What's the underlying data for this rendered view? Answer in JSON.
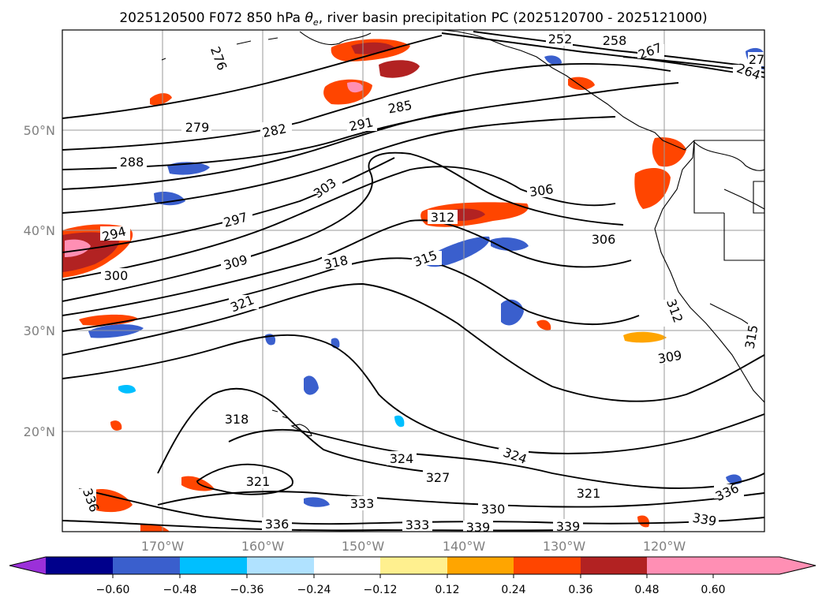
{
  "title": "2025120500 F072 850 hPa θe, river basin precipitation PC (2025120700 - 2025121000)",
  "title_parts": {
    "prefix": "2025120500 F072 850 hPa ",
    "theta": "θ",
    "theta_sub": "e",
    "suffix": ", river basin precipitation PC (2025120700 - 2025121000)"
  },
  "map": {
    "lon_range": [
      -178,
      -108
    ],
    "lat_range": [
      10,
      60
    ],
    "lon_gridlines": [
      -170,
      -160,
      -150,
      -140,
      -130,
      -120
    ],
    "lat_gridlines": [
      20,
      30,
      40,
      50
    ],
    "lon_labels": [
      "170°W",
      "160°W",
      "150°W",
      "140°W",
      "130°W",
      "120°W"
    ],
    "lat_labels": [
      "20°N",
      "30°N",
      "40°N",
      "50°N"
    ],
    "contour_labels": [
      "276",
      "279",
      "282",
      "285",
      "288",
      "291",
      "294",
      "297",
      "300",
      "303",
      "306",
      "306",
      "309",
      "309",
      "312",
      "312",
      "315",
      "315",
      "318",
      "318",
      "321",
      "321",
      "321",
      "324",
      "324",
      "327",
      "330",
      "333",
      "333",
      "336",
      "336",
      "336",
      "339",
      "339",
      "339",
      "258",
      "267",
      "264",
      "27",
      "252"
    ]
  },
  "colorbar": {
    "colors": [
      "#9b30d9",
      "#00008b",
      "#3a5fcd",
      "#00bfff",
      "#b0e2ff",
      "#ffffff",
      "#fff08f",
      "#ffa500",
      "#ff4500",
      "#b22222",
      "#ff8fb4"
    ],
    "tick_labels": [
      "−0.60",
      "−0.48",
      "−0.36",
      "−0.24",
      "−0.12",
      "0.12",
      "0.24",
      "0.36",
      "0.48",
      "0.60"
    ]
  }
}
